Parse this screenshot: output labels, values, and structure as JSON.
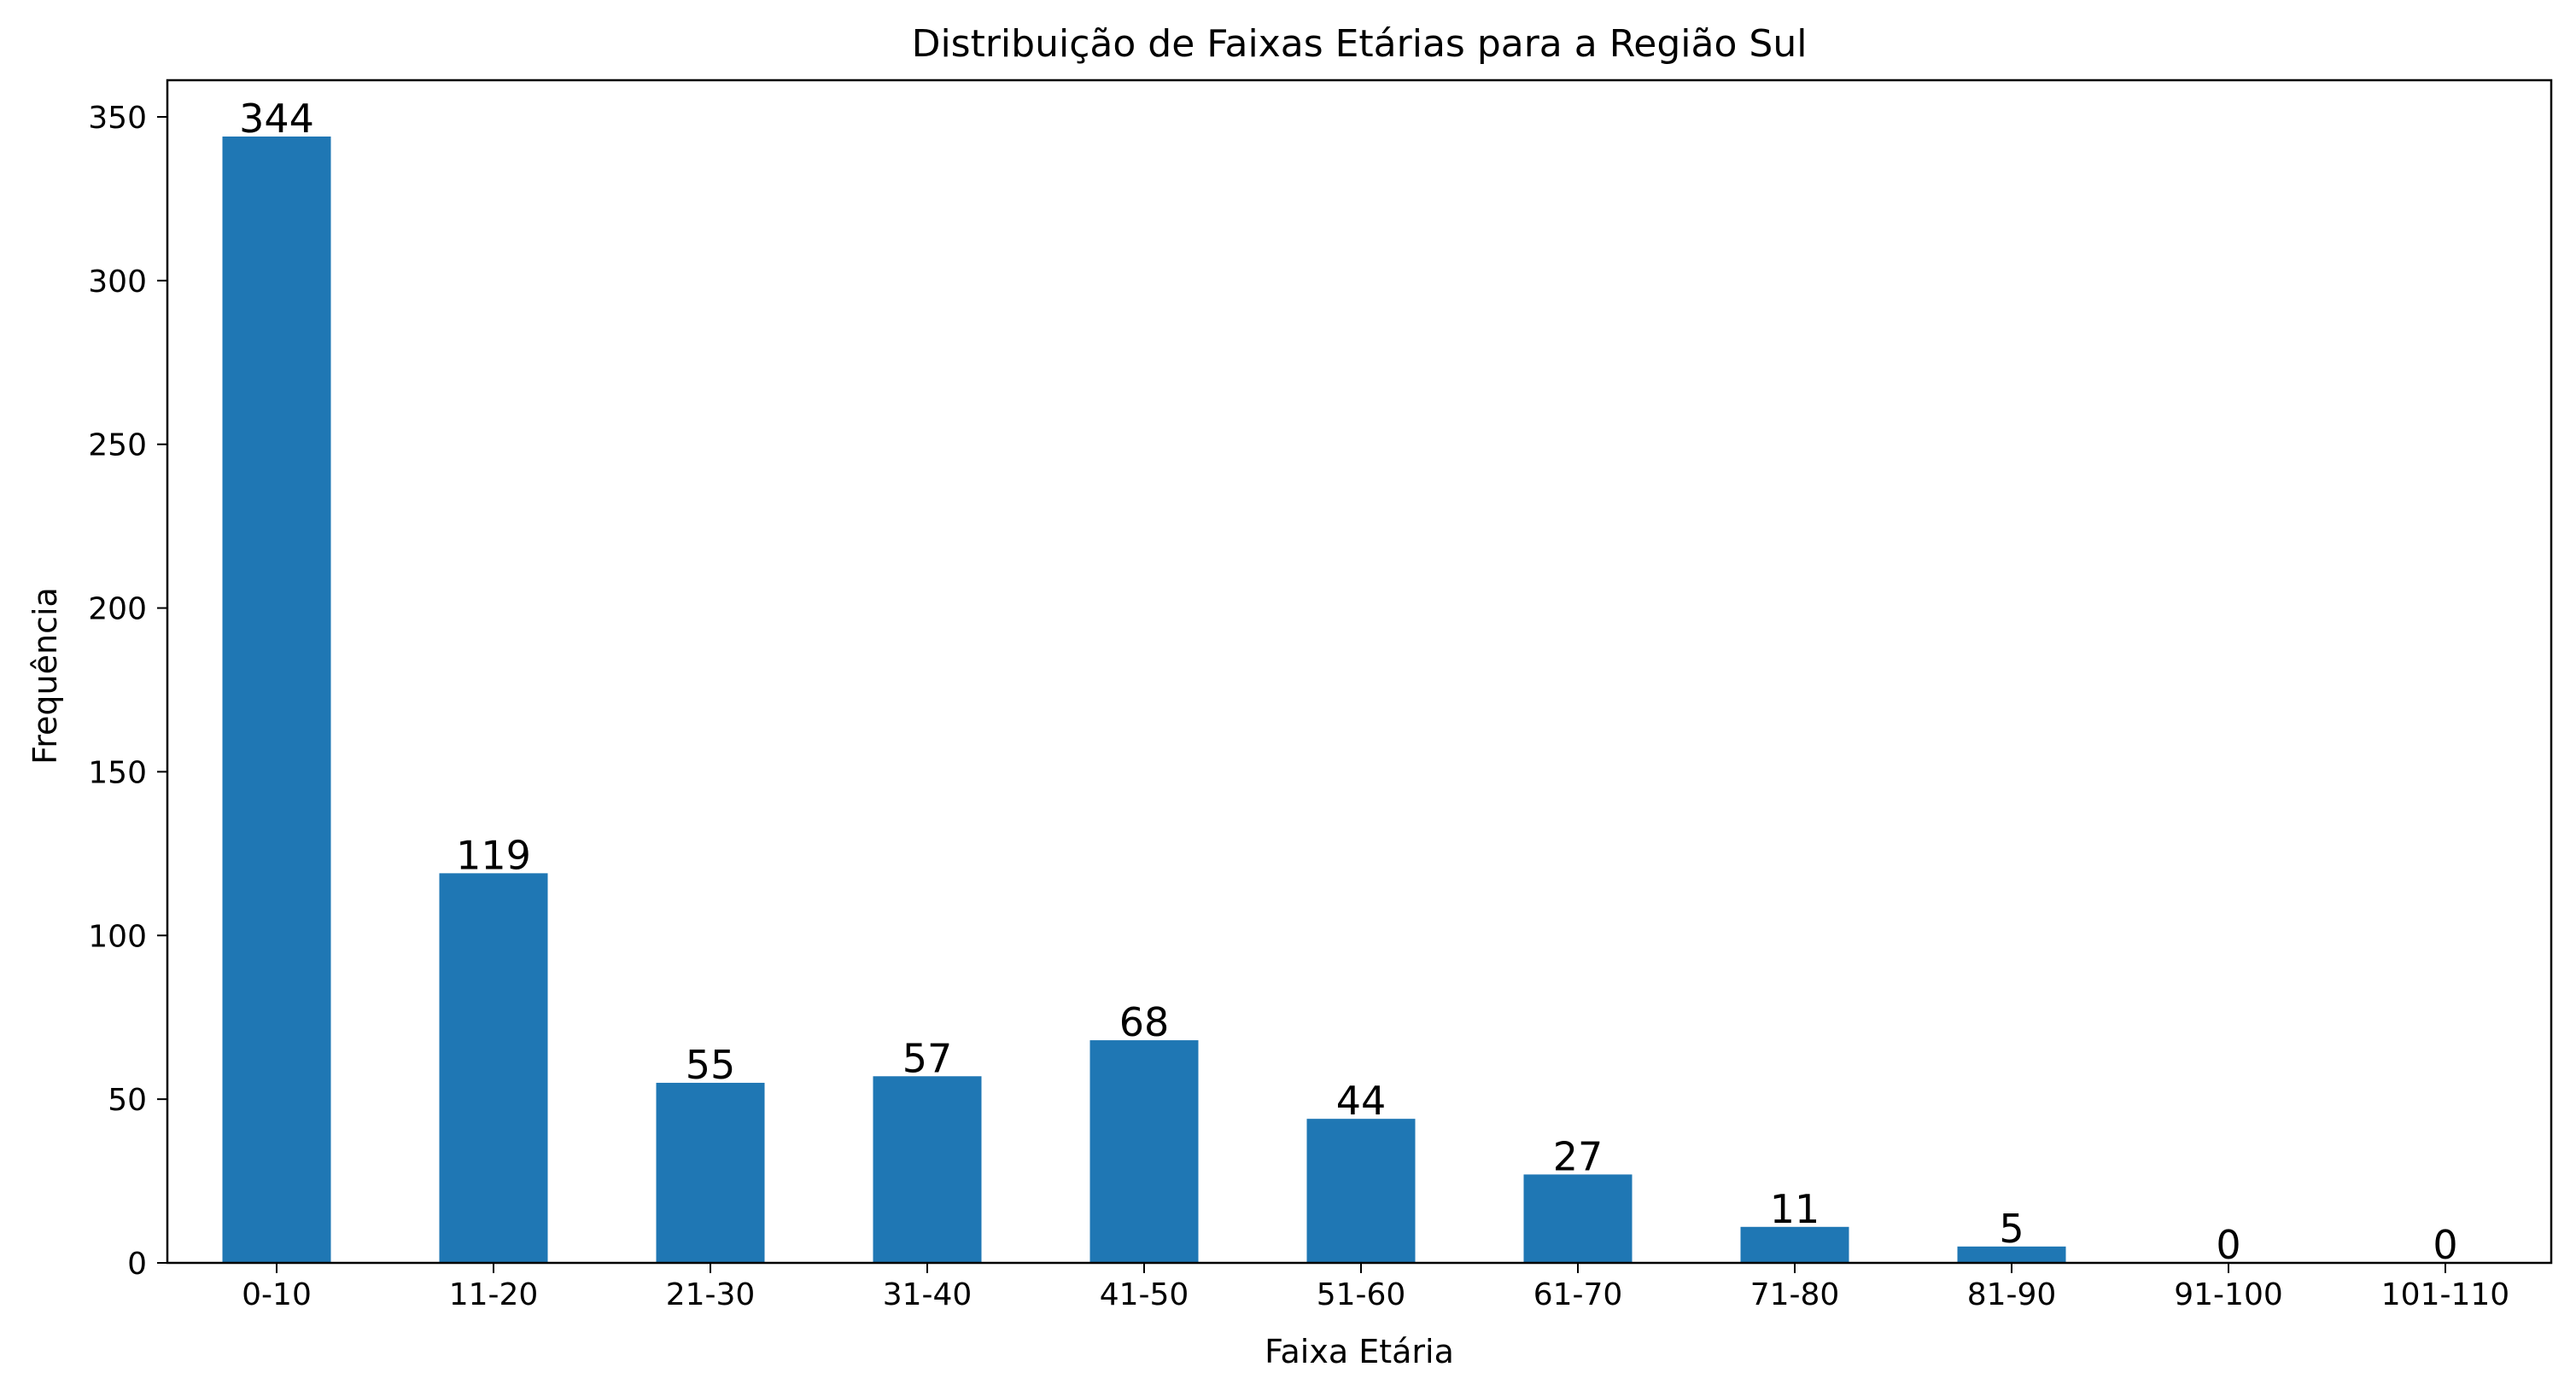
{
  "chart_data": {
    "type": "bar",
    "title": "Distribuição de Faixas Etárias para a Região Sul",
    "xlabel": "Faixa Etária",
    "ylabel": "Frequência",
    "categories": [
      "0-10",
      "11-20",
      "21-30",
      "31-40",
      "41-50",
      "51-60",
      "61-70",
      "71-80",
      "81-90",
      "91-100",
      "101-110"
    ],
    "values": [
      344,
      119,
      55,
      57,
      68,
      44,
      27,
      11,
      5,
      0,
      0
    ],
    "data_labels": [
      "344",
      "119",
      "55",
      "57",
      "68",
      "44",
      "27",
      "11",
      "5",
      "0",
      "0"
    ],
    "ylim": [
      0,
      361.2
    ],
    "yticks": [
      0,
      50,
      100,
      150,
      200,
      250,
      300,
      350
    ],
    "grid": false,
    "legend": "none",
    "bar_color": "#1f77b4"
  }
}
